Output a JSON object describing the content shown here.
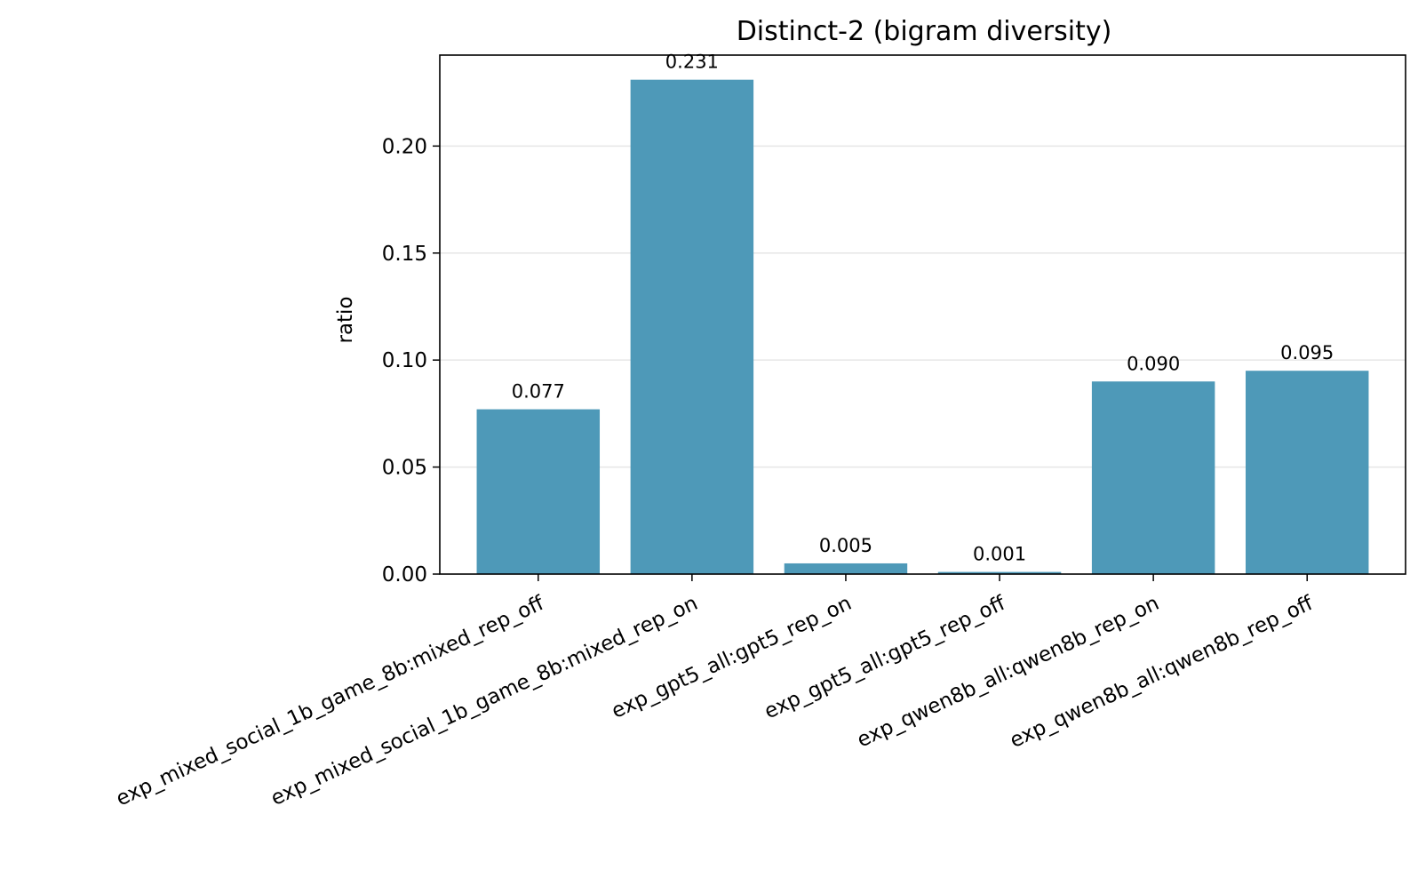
{
  "chart_data": {
    "type": "bar",
    "title": "Distinct-2 (bigram diversity)",
    "xlabel": "",
    "ylabel": "ratio",
    "categories": [
      "exp_mixed_social_1b_game_8b:mixed_rep_off",
      "exp_mixed_social_1b_game_8b:mixed_rep_on",
      "exp_gpt5_all:gpt5_rep_on",
      "exp_gpt5_all:gpt5_rep_off",
      "exp_qwen8b_all:qwen8b_rep_on",
      "exp_qwen8b_all:qwen8b_rep_off"
    ],
    "values": [
      0.077,
      0.231,
      0.005,
      0.001,
      0.09,
      0.095
    ],
    "value_labels": [
      "0.077",
      "0.231",
      "0.005",
      "0.001",
      "0.090",
      "0.095"
    ],
    "ylim": [
      0,
      0.2425
    ],
    "yticks": [
      0.0,
      0.05,
      0.1,
      0.15,
      0.2
    ],
    "ytick_labels": [
      "0.00",
      "0.05",
      "0.10",
      "0.15",
      "0.20"
    ],
    "grid": "y",
    "bar_color": "#4e99b8",
    "legend": "none"
  }
}
